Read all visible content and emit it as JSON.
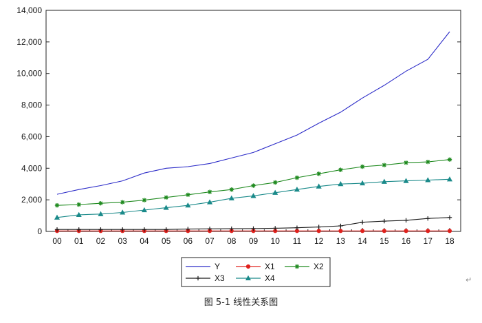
{
  "caption": "图 5-1  线性关系图",
  "return_mark": "↵",
  "chart_data": {
    "type": "line",
    "title": "",
    "xlabel": "",
    "ylabel": "",
    "categories": [
      "00",
      "01",
      "02",
      "03",
      "04",
      "05",
      "06",
      "07",
      "08",
      "09",
      "10",
      "11",
      "12",
      "13",
      "14",
      "15",
      "16",
      "17",
      "18"
    ],
    "ylim": [
      0,
      14000
    ],
    "yticks": [
      0,
      2000,
      4000,
      6000,
      8000,
      10000,
      12000,
      14000
    ],
    "ytick_labels": [
      "0",
      "2,000",
      "4,000",
      "6,000",
      "8,000",
      "10,000",
      "12,000",
      "14,000"
    ],
    "grid": false,
    "legend_position": "bottom-center",
    "series": [
      {
        "name": "Y",
        "color": "#2b2bc8",
        "marker": "none",
        "values": [
          2350,
          2650,
          2900,
          3200,
          3700,
          4000,
          4100,
          4300,
          4650,
          5000,
          5550,
          6100,
          6850,
          7550,
          8450,
          9250,
          10150,
          10900,
          12650
        ]
      },
      {
        "name": "X1",
        "color": "#e0201c",
        "marker": "circle",
        "values": [
          30,
          30,
          30,
          30,
          30,
          30,
          30,
          30,
          30,
          30,
          30,
          30,
          30,
          30,
          30,
          30,
          30,
          30,
          30
        ]
      },
      {
        "name": "X2",
        "color": "#1f8a1f",
        "marker": "star",
        "values": [
          1650,
          1700,
          1780,
          1850,
          1980,
          2150,
          2320,
          2500,
          2650,
          2900,
          3100,
          3400,
          3650,
          3900,
          4100,
          4200,
          4350,
          4400,
          4550
        ]
      },
      {
        "name": "X3",
        "color": "#1a1a1a",
        "marker": "plus",
        "values": [
          120,
          120,
          120,
          120,
          120,
          120,
          150,
          160,
          170,
          180,
          200,
          230,
          280,
          350,
          580,
          650,
          700,
          820,
          880
        ]
      },
      {
        "name": "X4",
        "color": "#1a8a8a",
        "marker": "triangle",
        "values": [
          880,
          1050,
          1100,
          1200,
          1350,
          1500,
          1650,
          1850,
          2100,
          2250,
          2450,
          2650,
          2850,
          3000,
          3050,
          3150,
          3200,
          3250,
          3300
        ]
      }
    ]
  }
}
